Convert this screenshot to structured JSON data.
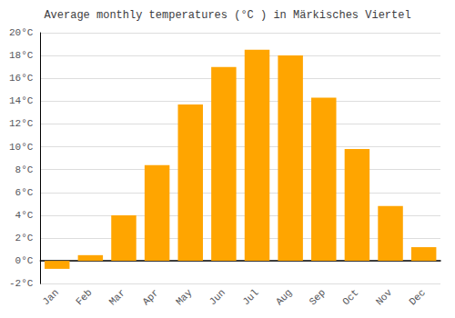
{
  "chart_data": {
    "type": "bar",
    "title": "Average monthly temperatures (°C ) in Märkisches Viertel",
    "categories": [
      "Jan",
      "Feb",
      "Mar",
      "Apr",
      "May",
      "Jun",
      "Jul",
      "Aug",
      "Sep",
      "Oct",
      "Nov",
      "Dec"
    ],
    "values": [
      -0.7,
      0.5,
      4.0,
      8.4,
      13.7,
      17.0,
      18.5,
      18.0,
      14.3,
      9.8,
      4.8,
      1.2
    ],
    "color": "#FFA500",
    "ylim": [
      -2,
      20
    ],
    "yticks": [
      {
        "value": -2,
        "label": "-2°C"
      },
      {
        "value": 0,
        "label": "0°C"
      },
      {
        "value": 2,
        "label": "2°C"
      },
      {
        "value": 4,
        "label": "4°C"
      },
      {
        "value": 6,
        "label": "6°C"
      },
      {
        "value": 8,
        "label": "8°C"
      },
      {
        "value": 10,
        "label": "10°C"
      },
      {
        "value": 12,
        "label": "12°C"
      },
      {
        "value": 14,
        "label": "14°C"
      },
      {
        "value": 16,
        "label": "16°C"
      },
      {
        "value": 18,
        "label": "18°C"
      },
      {
        "value": 20,
        "label": "20°C"
      }
    ],
    "grid": true
  }
}
